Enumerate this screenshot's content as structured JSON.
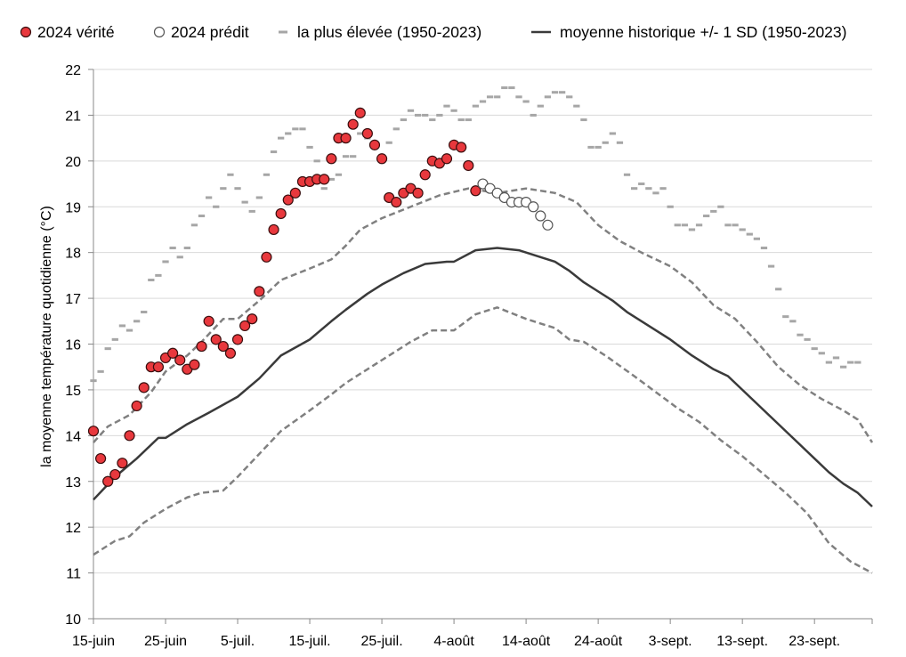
{
  "chart_data": {
    "type": "line",
    "title": "",
    "xlabel": "",
    "ylabel": "la moyenne température quotidienne (°C)",
    "ylim": [
      10,
      22
    ],
    "yticks": [
      10,
      11,
      12,
      13,
      14,
      15,
      16,
      17,
      18,
      19,
      20,
      21,
      22
    ],
    "x_domain": [
      0,
      108
    ],
    "xticks": [
      {
        "x": 0,
        "label": "15-juin"
      },
      {
        "x": 10,
        "label": "25-juin"
      },
      {
        "x": 20,
        "label": "5-juil."
      },
      {
        "x": 30,
        "label": "15-juil."
      },
      {
        "x": 40,
        "label": "25-juil."
      },
      {
        "x": 50,
        "label": "4-août"
      },
      {
        "x": 60,
        "label": "14-août"
      },
      {
        "x": 70,
        "label": "24-août"
      },
      {
        "x": 80,
        "label": "3-sept."
      },
      {
        "x": 90,
        "label": "13-sept."
      },
      {
        "x": 100,
        "label": "23-sept."
      }
    ],
    "grid": "horizontal",
    "legend_position": "top",
    "legend": [
      {
        "key": "truth",
        "label": "2024 vérité"
      },
      {
        "key": "pred",
        "label": "2024 prédit"
      },
      {
        "key": "max",
        "label": "la plus élevée (1950-2023)"
      },
      {
        "key": "mean",
        "label": "moyenne historique +/- 1 SD (1950-2023)"
      }
    ],
    "colors": {
      "truth_fill": "#e8383d",
      "truth_stroke": "#3a0e0e",
      "pred_fill": "#ffffff",
      "pred_stroke": "#555555",
      "max": "#a6a6a6",
      "sd": "#808080",
      "mean": "#3a3a3a",
      "grid": "#d9d9d9",
      "axis": "#888888"
    },
    "series": [
      {
        "key": "truth",
        "name": "2024 vérité",
        "style": "markers",
        "points": [
          [
            0,
            14.1
          ],
          [
            1,
            13.5
          ],
          [
            2,
            13.0
          ],
          [
            3,
            13.15
          ],
          [
            4,
            13.4
          ],
          [
            5,
            14.0
          ],
          [
            6,
            14.65
          ],
          [
            7,
            15.05
          ],
          [
            8,
            15.5
          ],
          [
            9,
            15.5
          ],
          [
            10,
            15.7
          ],
          [
            11,
            15.8
          ],
          [
            12,
            15.65
          ],
          [
            13,
            15.45
          ],
          [
            14,
            15.55
          ],
          [
            15,
            15.95
          ],
          [
            16,
            16.5
          ],
          [
            17,
            16.1
          ],
          [
            18,
            15.95
          ],
          [
            19,
            15.8
          ],
          [
            20,
            16.1
          ],
          [
            21,
            16.4
          ],
          [
            22,
            16.55
          ],
          [
            23,
            17.15
          ],
          [
            24,
            17.9
          ],
          [
            25,
            18.5
          ],
          [
            26,
            18.85
          ],
          [
            27,
            19.15
          ],
          [
            28,
            19.3
          ],
          [
            29,
            19.55
          ],
          [
            30,
            19.55
          ],
          [
            31,
            19.6
          ],
          [
            32,
            19.6
          ],
          [
            33,
            20.05
          ],
          [
            34,
            20.5
          ],
          [
            35,
            20.5
          ],
          [
            36,
            20.8
          ],
          [
            37,
            21.05
          ],
          [
            38,
            20.6
          ],
          [
            39,
            20.35
          ],
          [
            40,
            20.05
          ],
          [
            41,
            19.2
          ],
          [
            42,
            19.1
          ],
          [
            43,
            19.3
          ],
          [
            44,
            19.4
          ],
          [
            45,
            19.3
          ],
          [
            46,
            19.7
          ],
          [
            47,
            20.0
          ],
          [
            48,
            19.95
          ],
          [
            49,
            20.05
          ],
          [
            50,
            20.35
          ],
          [
            51,
            20.3
          ],
          [
            52,
            19.9
          ],
          [
            53,
            19.35
          ]
        ]
      },
      {
        "key": "pred",
        "name": "2024 prédit",
        "style": "markers",
        "points": [
          [
            54,
            19.5
          ],
          [
            55,
            19.4
          ],
          [
            56,
            19.3
          ],
          [
            57,
            19.2
          ],
          [
            58,
            19.1
          ],
          [
            59,
            19.1
          ],
          [
            60,
            19.1
          ],
          [
            61,
            19.0
          ],
          [
            62,
            18.8
          ],
          [
            63,
            18.6
          ]
        ]
      },
      {
        "key": "max",
        "name": "la plus élevée (1950-2023)",
        "style": "dashes",
        "points": [
          [
            0,
            15.2
          ],
          [
            1,
            15.4
          ],
          [
            2,
            15.9
          ],
          [
            3,
            16.1
          ],
          [
            4,
            16.4
          ],
          [
            5,
            16.3
          ],
          [
            6,
            16.5
          ],
          [
            7,
            16.7
          ],
          [
            8,
            17.4
          ],
          [
            9,
            17.5
          ],
          [
            10,
            17.8
          ],
          [
            11,
            18.1
          ],
          [
            12,
            17.9
          ],
          [
            13,
            18.1
          ],
          [
            14,
            18.6
          ],
          [
            15,
            18.8
          ],
          [
            16,
            19.2
          ],
          [
            17,
            19.0
          ],
          [
            18,
            19.4
          ],
          [
            19,
            19.7
          ],
          [
            20,
            19.4
          ],
          [
            21,
            19.1
          ],
          [
            22,
            18.9
          ],
          [
            23,
            19.2
          ],
          [
            24,
            19.7
          ],
          [
            25,
            20.2
          ],
          [
            26,
            20.5
          ],
          [
            27,
            20.6
          ],
          [
            28,
            20.7
          ],
          [
            29,
            20.7
          ],
          [
            30,
            20.3
          ],
          [
            31,
            20.0
          ],
          [
            32,
            19.4
          ],
          [
            33,
            19.6
          ],
          [
            34,
            19.7
          ],
          [
            35,
            20.1
          ],
          [
            36,
            20.1
          ],
          [
            37,
            20.6
          ],
          [
            38,
            20.5
          ],
          [
            39,
            20.3
          ],
          [
            40,
            20.1
          ],
          [
            41,
            20.4
          ],
          [
            42,
            20.7
          ],
          [
            43,
            20.9
          ],
          [
            44,
            21.1
          ],
          [
            45,
            21.0
          ],
          [
            46,
            21.0
          ],
          [
            47,
            20.9
          ],
          [
            48,
            21.0
          ],
          [
            49,
            21.2
          ],
          [
            50,
            21.1
          ],
          [
            51,
            20.9
          ],
          [
            52,
            20.9
          ],
          [
            53,
            21.2
          ],
          [
            54,
            21.3
          ],
          [
            55,
            21.4
          ],
          [
            56,
            21.4
          ],
          [
            57,
            21.6
          ],
          [
            58,
            21.6
          ],
          [
            59,
            21.4
          ],
          [
            60,
            21.3
          ],
          [
            61,
            21.0
          ],
          [
            62,
            21.2
          ],
          [
            63,
            21.4
          ],
          [
            64,
            21.5
          ],
          [
            65,
            21.5
          ],
          [
            66,
            21.4
          ],
          [
            67,
            21.2
          ],
          [
            68,
            20.9
          ],
          [
            69,
            20.3
          ],
          [
            70,
            20.3
          ],
          [
            71,
            20.4
          ],
          [
            72,
            20.6
          ],
          [
            73,
            20.4
          ],
          [
            74,
            19.7
          ],
          [
            75,
            19.4
          ],
          [
            76,
            19.5
          ],
          [
            77,
            19.4
          ],
          [
            78,
            19.3
          ],
          [
            79,
            19.4
          ],
          [
            80,
            19.0
          ],
          [
            81,
            18.6
          ],
          [
            82,
            18.6
          ],
          [
            83,
            18.5
          ],
          [
            84,
            18.6
          ],
          [
            85,
            18.8
          ],
          [
            86,
            18.9
          ],
          [
            87,
            19.0
          ],
          [
            88,
            18.6
          ],
          [
            89,
            18.6
          ],
          [
            90,
            18.5
          ],
          [
            91,
            18.4
          ],
          [
            92,
            18.3
          ],
          [
            93,
            18.1
          ],
          [
            94,
            17.7
          ],
          [
            95,
            17.2
          ],
          [
            96,
            16.6
          ],
          [
            97,
            16.5
          ],
          [
            98,
            16.2
          ],
          [
            99,
            16.1
          ],
          [
            100,
            15.9
          ],
          [
            101,
            15.8
          ],
          [
            102,
            15.6
          ],
          [
            103,
            15.7
          ],
          [
            104,
            15.5
          ],
          [
            105,
            15.6
          ],
          [
            106,
            15.6
          ]
        ]
      },
      {
        "key": "upper_sd",
        "name": "",
        "style": "dashed-line",
        "points": [
          [
            0,
            13.85
          ],
          [
            2,
            14.2
          ],
          [
            5,
            14.45
          ],
          [
            8,
            14.95
          ],
          [
            10,
            15.4
          ],
          [
            13,
            15.75
          ],
          [
            15,
            16.05
          ],
          [
            18,
            16.55
          ],
          [
            20,
            16.55
          ],
          [
            23,
            16.95
          ],
          [
            26,
            17.4
          ],
          [
            30,
            17.65
          ],
          [
            33,
            17.85
          ],
          [
            35,
            18.15
          ],
          [
            37,
            18.5
          ],
          [
            40,
            18.75
          ],
          [
            44,
            19.0
          ],
          [
            48,
            19.25
          ],
          [
            52,
            19.4
          ],
          [
            56,
            19.3
          ],
          [
            60,
            19.4
          ],
          [
            64,
            19.3
          ],
          [
            67,
            19.1
          ],
          [
            70,
            18.6
          ],
          [
            73,
            18.25
          ],
          [
            76,
            18.0
          ],
          [
            80,
            17.7
          ],
          [
            83,
            17.35
          ],
          [
            86,
            16.85
          ],
          [
            89,
            16.55
          ],
          [
            92,
            16.05
          ],
          [
            95,
            15.5
          ],
          [
            98,
            15.1
          ],
          [
            101,
            14.8
          ],
          [
            104,
            14.55
          ],
          [
            106,
            14.35
          ],
          [
            107,
            14.1
          ],
          [
            108,
            13.85
          ]
        ]
      },
      {
        "key": "lower_sd",
        "name": "",
        "style": "dashed-line",
        "points": [
          [
            0,
            11.4
          ],
          [
            3,
            11.7
          ],
          [
            5,
            11.8
          ],
          [
            7,
            12.1
          ],
          [
            10,
            12.4
          ],
          [
            13,
            12.65
          ],
          [
            15,
            12.75
          ],
          [
            18,
            12.8
          ],
          [
            20,
            13.1
          ],
          [
            23,
            13.6
          ],
          [
            26,
            14.1
          ],
          [
            30,
            14.55
          ],
          [
            33,
            14.9
          ],
          [
            35,
            15.15
          ],
          [
            38,
            15.45
          ],
          [
            40,
            15.65
          ],
          [
            44,
            16.05
          ],
          [
            47,
            16.3
          ],
          [
            50,
            16.3
          ],
          [
            53,
            16.65
          ],
          [
            56,
            16.8
          ],
          [
            60,
            16.55
          ],
          [
            64,
            16.35
          ],
          [
            66,
            16.1
          ],
          [
            68,
            16.05
          ],
          [
            71,
            15.75
          ],
          [
            75,
            15.3
          ],
          [
            78,
            14.95
          ],
          [
            81,
            14.6
          ],
          [
            84,
            14.3
          ],
          [
            87,
            13.9
          ],
          [
            90,
            13.55
          ],
          [
            93,
            13.15
          ],
          [
            96,
            12.75
          ],
          [
            99,
            12.3
          ],
          [
            102,
            11.65
          ],
          [
            105,
            11.25
          ],
          [
            108,
            11.0
          ]
        ]
      },
      {
        "key": "mean",
        "name": "",
        "style": "solid-line",
        "points": [
          [
            0,
            12.6
          ],
          [
            3,
            13.1
          ],
          [
            6,
            13.5
          ],
          [
            9,
            13.95
          ],
          [
            10,
            13.95
          ],
          [
            13,
            14.25
          ],
          [
            16,
            14.5
          ],
          [
            20,
            14.85
          ],
          [
            23,
            15.25
          ],
          [
            26,
            15.75
          ],
          [
            30,
            16.1
          ],
          [
            33,
            16.5
          ],
          [
            35,
            16.75
          ],
          [
            38,
            17.1
          ],
          [
            40,
            17.3
          ],
          [
            43,
            17.55
          ],
          [
            46,
            17.75
          ],
          [
            49,
            17.8
          ],
          [
            50,
            17.8
          ],
          [
            53,
            18.05
          ],
          [
            56,
            18.1
          ],
          [
            59,
            18.05
          ],
          [
            62,
            17.9
          ],
          [
            64,
            17.8
          ],
          [
            66,
            17.6
          ],
          [
            68,
            17.35
          ],
          [
            70,
            17.15
          ],
          [
            72,
            16.95
          ],
          [
            74,
            16.7
          ],
          [
            77,
            16.4
          ],
          [
            80,
            16.1
          ],
          [
            83,
            15.75
          ],
          [
            86,
            15.45
          ],
          [
            88,
            15.3
          ],
          [
            91,
            14.85
          ],
          [
            94,
            14.4
          ],
          [
            97,
            13.95
          ],
          [
            100,
            13.5
          ],
          [
            102,
            13.2
          ],
          [
            104,
            12.95
          ],
          [
            106,
            12.75
          ],
          [
            108,
            12.45
          ]
        ]
      }
    ]
  }
}
